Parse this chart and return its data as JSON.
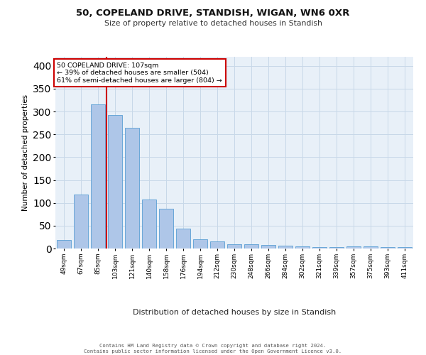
{
  "title1": "50, COPELAND DRIVE, STANDISH, WIGAN, WN6 0XR",
  "title2": "Size of property relative to detached houses in Standish",
  "xlabel": "Distribution of detached houses by size in Standish",
  "ylabel": "Number of detached properties",
  "categories": [
    "49sqm",
    "67sqm",
    "85sqm",
    "103sqm",
    "121sqm",
    "140sqm",
    "158sqm",
    "176sqm",
    "194sqm",
    "212sqm",
    "230sqm",
    "248sqm",
    "266sqm",
    "284sqm",
    "302sqm",
    "321sqm",
    "339sqm",
    "357sqm",
    "375sqm",
    "393sqm",
    "411sqm"
  ],
  "values": [
    19,
    118,
    315,
    293,
    265,
    108,
    87,
    44,
    20,
    16,
    9,
    9,
    8,
    6,
    4,
    3,
    3,
    4,
    4,
    3,
    3
  ],
  "bar_color": "#aec6e8",
  "bar_edge_color": "#5a9fd4",
  "vline_color": "#cc0000",
  "annotation_text": "50 COPELAND DRIVE: 107sqm\n← 39% of detached houses are smaller (504)\n61% of semi-detached houses are larger (804) →",
  "annotation_box_color": "#ffffff",
  "annotation_box_edge": "#cc0000",
  "grid_color": "#c8d8e8",
  "background_color": "#e8f0f8",
  "footer": "Contains HM Land Registry data © Crown copyright and database right 2024.\nContains public sector information licensed under the Open Government Licence v3.0.",
  "ylim": [
    0,
    420
  ],
  "yticks": [
    0,
    50,
    100,
    150,
    200,
    250,
    300,
    350,
    400
  ]
}
